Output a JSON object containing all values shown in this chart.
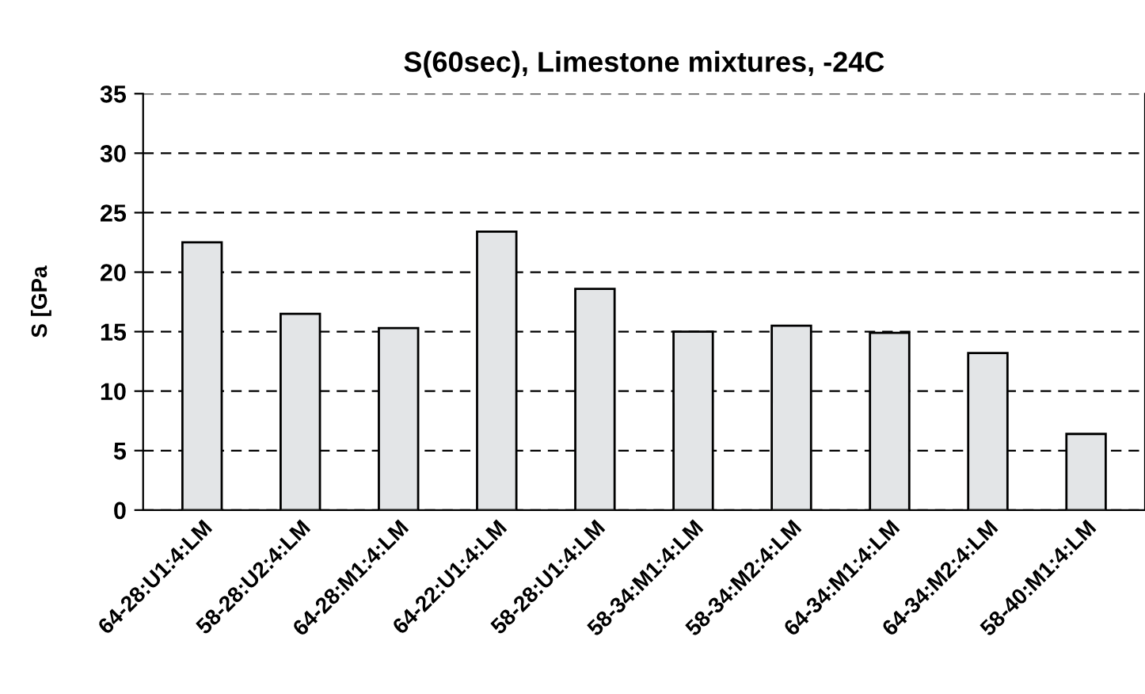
{
  "chart_data": {
    "type": "bar",
    "title": "S(60sec), Limestone mixtures, -24C",
    "ylabel": "S [GPa",
    "categories": [
      "64-28:U1:4:LM",
      "58-28:U2:4:LM",
      "64-28:M1:4:LM",
      "64-22:U1:4:LM",
      "58-28:U1:4:LM",
      "58-34:M1:4:LM",
      "58-34:M2:4:LM",
      "64-34:M1:4:LM",
      "64-34:M2:4:LM",
      "58-40:M1:4:LM"
    ],
    "values": [
      22.5,
      16.5,
      15.3,
      23.4,
      18.6,
      15.0,
      15.5,
      14.9,
      13.2,
      6.4
    ],
    "color": "#e3e5e7",
    "ylim": [
      0,
      35
    ],
    "yticks": [
      0,
      5,
      10,
      15,
      20,
      25,
      30,
      35
    ],
    "grid": "y",
    "legend": false
  }
}
